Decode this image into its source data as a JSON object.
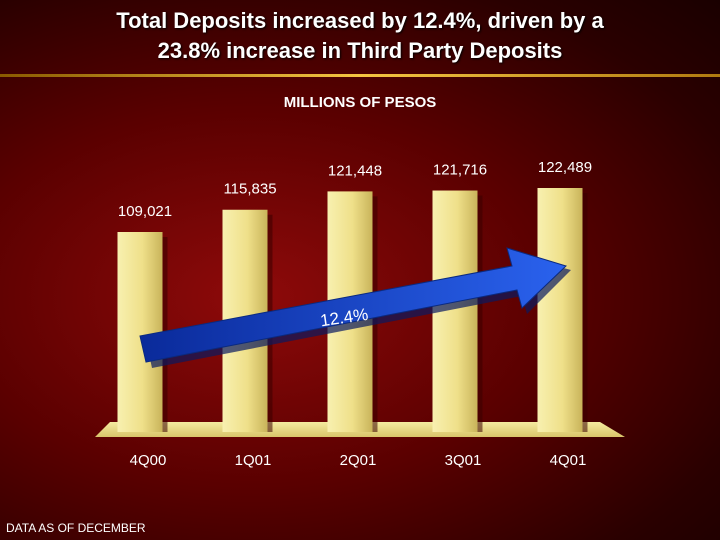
{
  "slide": {
    "title_line1": "Total Deposits increased by 12.4%, driven by a",
    "title_line2": "23.8% increase in Third Party Deposits",
    "footnote": "DATA AS OF DECEMBER"
  },
  "chart_data": {
    "type": "bar",
    "title": "MILLIONS OF PESOS",
    "categories": [
      "4Q00",
      "1Q01",
      "2Q01",
      "3Q01",
      "4Q01"
    ],
    "values": [
      109021,
      115835,
      121448,
      121716,
      122489
    ],
    "value_labels": [
      "109,021",
      "115,835",
      "121,448",
      "121,716",
      "122,489"
    ],
    "annotation": "12.4%",
    "colors": {
      "bar": "#f2e590",
      "arrow": "#1a50d8",
      "axis_text": "#ffffff"
    }
  }
}
